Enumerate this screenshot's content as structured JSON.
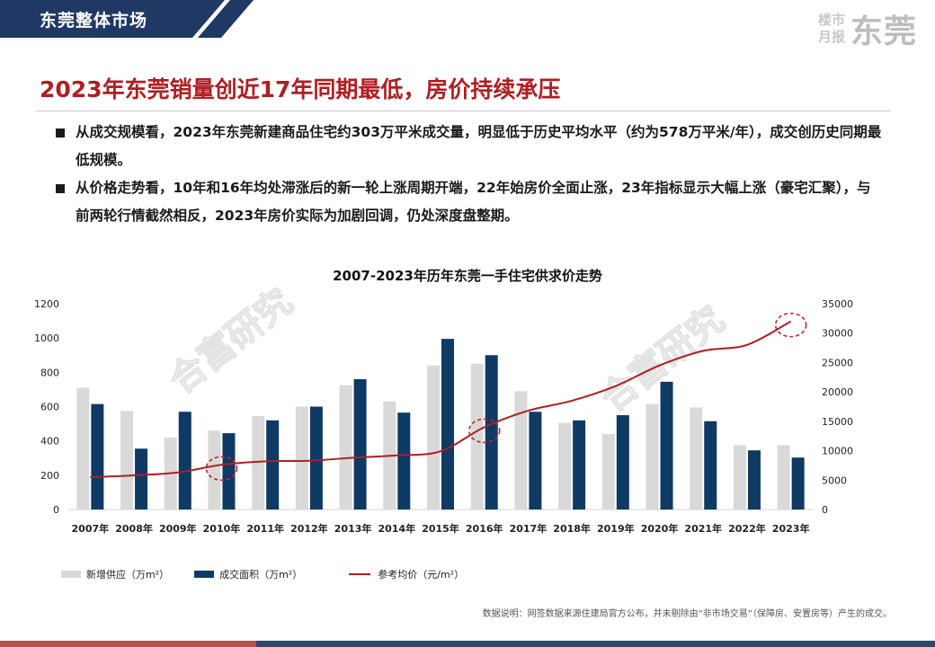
{
  "header": {
    "section_label": "东莞整体市场",
    "brand_small_1": "楼市",
    "brand_small_2": "月报",
    "brand_city": "东莞"
  },
  "headline": "2023年东莞销量创近17年同期最低，房价持续承压",
  "bullets": [
    "从成交规模看，2023年东莞新建商品住宅约303万平米成交量，明显低于历史平均水平（约为578万平米/年），成交创历史同期最低规模。",
    "从价格走势看，10年和16年均处滞涨后的新一轮上涨周期开端，22年始房价全面止涨，23年指标显示大幅上涨（豪宅汇聚），与前两轮行情截然相反，2023年房价实际为加剧回调，仍处深度盘整期。"
  ],
  "watermark": "合富研究",
  "footnote": "数据说明：网签数据来源住建局官方公布，并未剔除由“非市场交易”（保障房、安置房等）产生的成交。",
  "colors": {
    "brand_red": "#b01e23",
    "navy": "#1f3864",
    "supply_gray": "#d9d9d9",
    "deal_navy": "#0e3a63",
    "price_red": "#b01e23",
    "bottom_red": "#c0504d",
    "bottom_navy": "#2e4a6b"
  },
  "chart_data": {
    "type": "bar+line",
    "title": "2007-2023年历年东莞一手住宅供求价走势",
    "categories": [
      "2007年",
      "2008年",
      "2009年",
      "2010年",
      "2011年",
      "2012年",
      "2013年",
      "2014年",
      "2015年",
      "2016年",
      "2017年",
      "2018年",
      "2019年",
      "2020年",
      "2021年",
      "2022年",
      "2023年"
    ],
    "series": [
      {
        "name": "新增供应（万m²）",
        "type": "bar",
        "axis": "left",
        "values": [
          710,
          575,
          420,
          460,
          545,
          600,
          725,
          630,
          840,
          850,
          690,
          505,
          440,
          615,
          595,
          375,
          375
        ]
      },
      {
        "name": "成交面积（万m²）",
        "type": "bar",
        "axis": "left",
        "values": [
          615,
          355,
          570,
          445,
          520,
          600,
          760,
          565,
          995,
          900,
          570,
          520,
          550,
          745,
          515,
          345,
          303
        ]
      },
      {
        "name": "参考均价（元/m²）",
        "type": "line",
        "axis": "right",
        "values": [
          5500,
          5800,
          6300,
          7600,
          8200,
          8300,
          8800,
          9200,
          9900,
          14000,
          16800,
          18500,
          21000,
          24500,
          27000,
          28000,
          32000
        ]
      }
    ],
    "y_left": {
      "min": 0,
      "max": 1200,
      "ticks": [
        0,
        200,
        400,
        600,
        800,
        1000,
        1200
      ]
    },
    "y_right": {
      "min": 0,
      "max": 35000,
      "ticks": [
        0,
        5000,
        10000,
        15000,
        20000,
        25000,
        30000,
        35000
      ]
    },
    "highlights": [
      {
        "series": "参考均价（元/m²）",
        "category": "2010年"
      },
      {
        "series": "参考均价（元/m²）",
        "category": "2016年"
      },
      {
        "series": "参考均价（元/m²）",
        "category": "2023年"
      }
    ],
    "legend_position": "bottom-left"
  }
}
